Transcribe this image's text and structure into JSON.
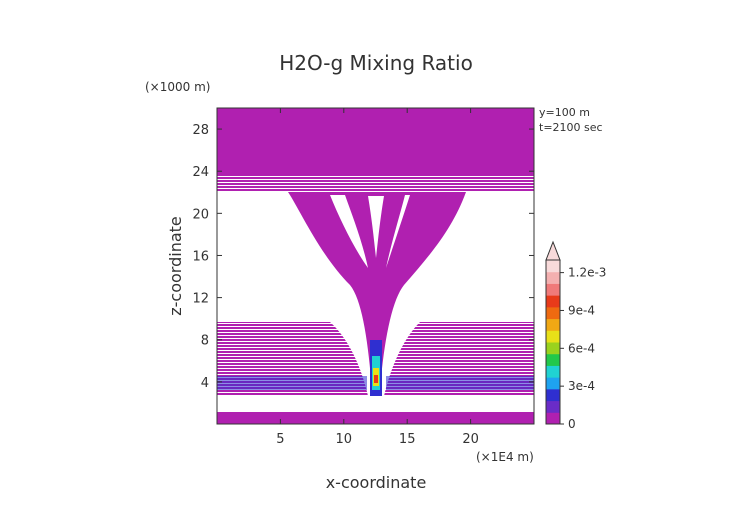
{
  "chart_data": {
    "type": "heatmap",
    "title": "H2O-g Mixing Ratio",
    "xlabel": "x-coordinate",
    "ylabel": "z-coordinate",
    "x_unit": "(×1E4 m)",
    "y_unit": "(×1000 m)",
    "annotations": [
      "y=100 m",
      "t=2100 sec"
    ],
    "xlim": [
      0,
      25
    ],
    "ylim": [
      0,
      30
    ],
    "x_ticks": [
      5,
      10,
      15,
      20
    ],
    "y_ticks": [
      4,
      8,
      12,
      16,
      20,
      24,
      28
    ],
    "colorbar": {
      "min": 0,
      "max": 0.0013,
      "tick_values": [
        0,
        0.0003,
        0.0006,
        0.0009,
        0.0012
      ],
      "tick_labels": [
        "0",
        "3e-4",
        "6e-4",
        "9e-4",
        "1.2e-3"
      ],
      "colors": [
        "#b020b0",
        "#6a2cc8",
        "#2f2fd0",
        "#1ea3f0",
        "#20d2d2",
        "#22c84a",
        "#9ad21e",
        "#e8e018",
        "#f0a814",
        "#ef6a10",
        "#e83a1a",
        "#f07a7a",
        "#f4b0b0",
        "#f8dada"
      ],
      "extend": "max"
    },
    "shading_color": "#b020b0"
  }
}
